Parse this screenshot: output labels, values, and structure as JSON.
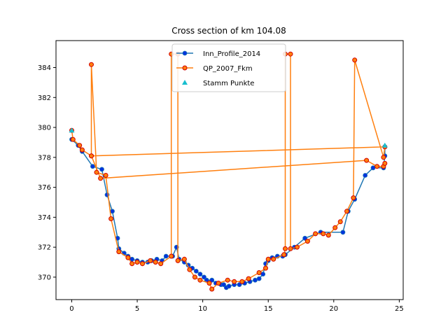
{
  "chart_data": {
    "type": "line",
    "title": "Cross section of km 104.08",
    "xlabel": "",
    "ylabel": "",
    "xlim": [
      -1.2,
      25.3
    ],
    "ylim": [
      368.5,
      385.8
    ],
    "xticks": [
      0,
      5,
      10,
      15,
      20,
      25
    ],
    "yticks": [
      370,
      372,
      374,
      376,
      378,
      380,
      382,
      384
    ],
    "grid": false,
    "legend_position": "top-center",
    "colors": {
      "Inn_Profile_2014": "#1f77b4",
      "Inn_Profile_2014_marker": "#0033dd",
      "QP_2007_Fkm": "#ff7f0e",
      "QP_2007_Fkm_marker_edge": "#d00000",
      "Stamm Punkte": "#17becf"
    },
    "series": [
      {
        "name": "Inn_Profile_2014",
        "style": "line+dots",
        "points": [
          [
            0.0,
            379.2
          ],
          [
            0.5,
            378.8
          ],
          [
            0.8,
            378.4
          ],
          [
            1.6,
            377.4
          ],
          [
            2.3,
            377.2
          ],
          [
            2.7,
            375.5
          ],
          [
            3.1,
            374.4
          ],
          [
            3.5,
            372.6
          ],
          [
            3.6,
            371.9
          ],
          [
            4.0,
            371.6
          ],
          [
            4.3,
            371.4
          ],
          [
            4.6,
            371.2
          ],
          [
            5.0,
            371.1
          ],
          [
            5.4,
            371.0
          ],
          [
            5.8,
            371.0
          ],
          [
            6.1,
            371.1
          ],
          [
            6.5,
            371.2
          ],
          [
            6.9,
            371.1
          ],
          [
            7.2,
            371.4
          ],
          [
            7.7,
            371.4
          ],
          [
            8.0,
            372.0
          ],
          [
            8.2,
            371.2
          ],
          [
            8.6,
            371.0
          ],
          [
            8.9,
            370.8
          ],
          [
            9.2,
            370.6
          ],
          [
            9.5,
            370.4
          ],
          [
            9.8,
            370.2
          ],
          [
            10.1,
            370.0
          ],
          [
            10.3,
            369.8
          ],
          [
            10.7,
            369.8
          ],
          [
            11.0,
            369.6
          ],
          [
            11.4,
            369.5
          ],
          [
            11.6,
            369.5
          ],
          [
            11.8,
            369.3
          ],
          [
            12.0,
            369.4
          ],
          [
            12.4,
            369.5
          ],
          [
            12.8,
            369.5
          ],
          [
            13.2,
            369.6
          ],
          [
            13.6,
            369.7
          ],
          [
            14.0,
            369.8
          ],
          [
            14.3,
            369.9
          ],
          [
            14.6,
            370.2
          ],
          [
            14.8,
            370.9
          ],
          [
            15.0,
            371.1
          ],
          [
            15.3,
            371.3
          ],
          [
            15.7,
            371.4
          ],
          [
            16.1,
            371.4
          ],
          [
            16.3,
            371.5
          ],
          [
            17.0,
            372.0
          ],
          [
            17.8,
            372.6
          ],
          [
            19.0,
            373.0
          ],
          [
            20.7,
            373.0
          ],
          [
            21.1,
            374.4
          ],
          [
            21.6,
            375.2
          ],
          [
            22.4,
            376.8
          ],
          [
            23.0,
            377.3
          ],
          [
            23.8,
            377.3
          ],
          [
            23.9,
            378.1
          ],
          [
            23.9,
            378.7
          ]
        ]
      },
      {
        "name": "QP_2007_Fkm",
        "style": "line+dots",
        "points": [
          [
            0.0,
            379.8
          ],
          [
            0.1,
            379.2
          ],
          [
            0.6,
            378.8
          ],
          [
            0.8,
            378.5
          ],
          [
            1.5,
            378.1
          ],
          [
            1.5,
            384.2
          ],
          [
            1.9,
            377.0
          ],
          [
            2.6,
            376.8
          ],
          [
            3.0,
            373.9
          ],
          [
            3.6,
            371.7
          ],
          [
            4.3,
            371.3
          ],
          [
            4.6,
            370.9
          ],
          [
            5.0,
            371.0
          ],
          [
            5.4,
            370.9
          ],
          [
            6.0,
            371.1
          ],
          [
            6.4,
            371.0
          ],
          [
            6.8,
            370.9
          ],
          [
            7.6,
            371.4
          ],
          [
            7.6,
            384.9
          ],
          [
            8.1,
            384.9
          ],
          [
            8.1,
            371.1
          ],
          [
            8.6,
            371.2
          ],
          [
            9.0,
            370.5
          ],
          [
            9.4,
            370.0
          ],
          [
            9.8,
            369.8
          ],
          [
            10.5,
            369.6
          ],
          [
            10.7,
            369.2
          ],
          [
            11.2,
            369.6
          ],
          [
            11.9,
            369.8
          ],
          [
            12.4,
            369.7
          ],
          [
            13.0,
            369.7
          ],
          [
            13.5,
            369.9
          ],
          [
            14.3,
            370.3
          ],
          [
            14.8,
            370.6
          ],
          [
            15.0,
            371.2
          ],
          [
            15.4,
            371.2
          ],
          [
            16.2,
            371.5
          ],
          [
            16.3,
            371.9
          ],
          [
            16.3,
            384.9
          ],
          [
            16.7,
            384.9
          ],
          [
            16.7,
            371.9
          ],
          [
            17.2,
            372.0
          ],
          [
            18.0,
            372.4
          ],
          [
            18.6,
            372.9
          ],
          [
            19.2,
            372.9
          ],
          [
            19.6,
            372.8
          ],
          [
            20.1,
            373.3
          ],
          [
            20.5,
            373.7
          ],
          [
            21.0,
            374.4
          ],
          [
            21.5,
            375.3
          ],
          [
            21.6,
            384.5
          ],
          [
            23.8,
            378.0
          ],
          [
            23.9,
            378.7
          ],
          [
            1.5,
            378.1
          ],
          [
            2.2,
            376.6
          ],
          [
            22.5,
            377.8
          ],
          [
            23.3,
            377.4
          ],
          [
            23.8,
            377.4
          ],
          [
            23.9,
            377.6
          ]
        ]
      },
      {
        "name": "Stamm Punkte",
        "style": "triangle-markers",
        "points": [
          [
            0.0,
            379.8
          ],
          [
            23.9,
            378.8
          ]
        ]
      }
    ]
  }
}
